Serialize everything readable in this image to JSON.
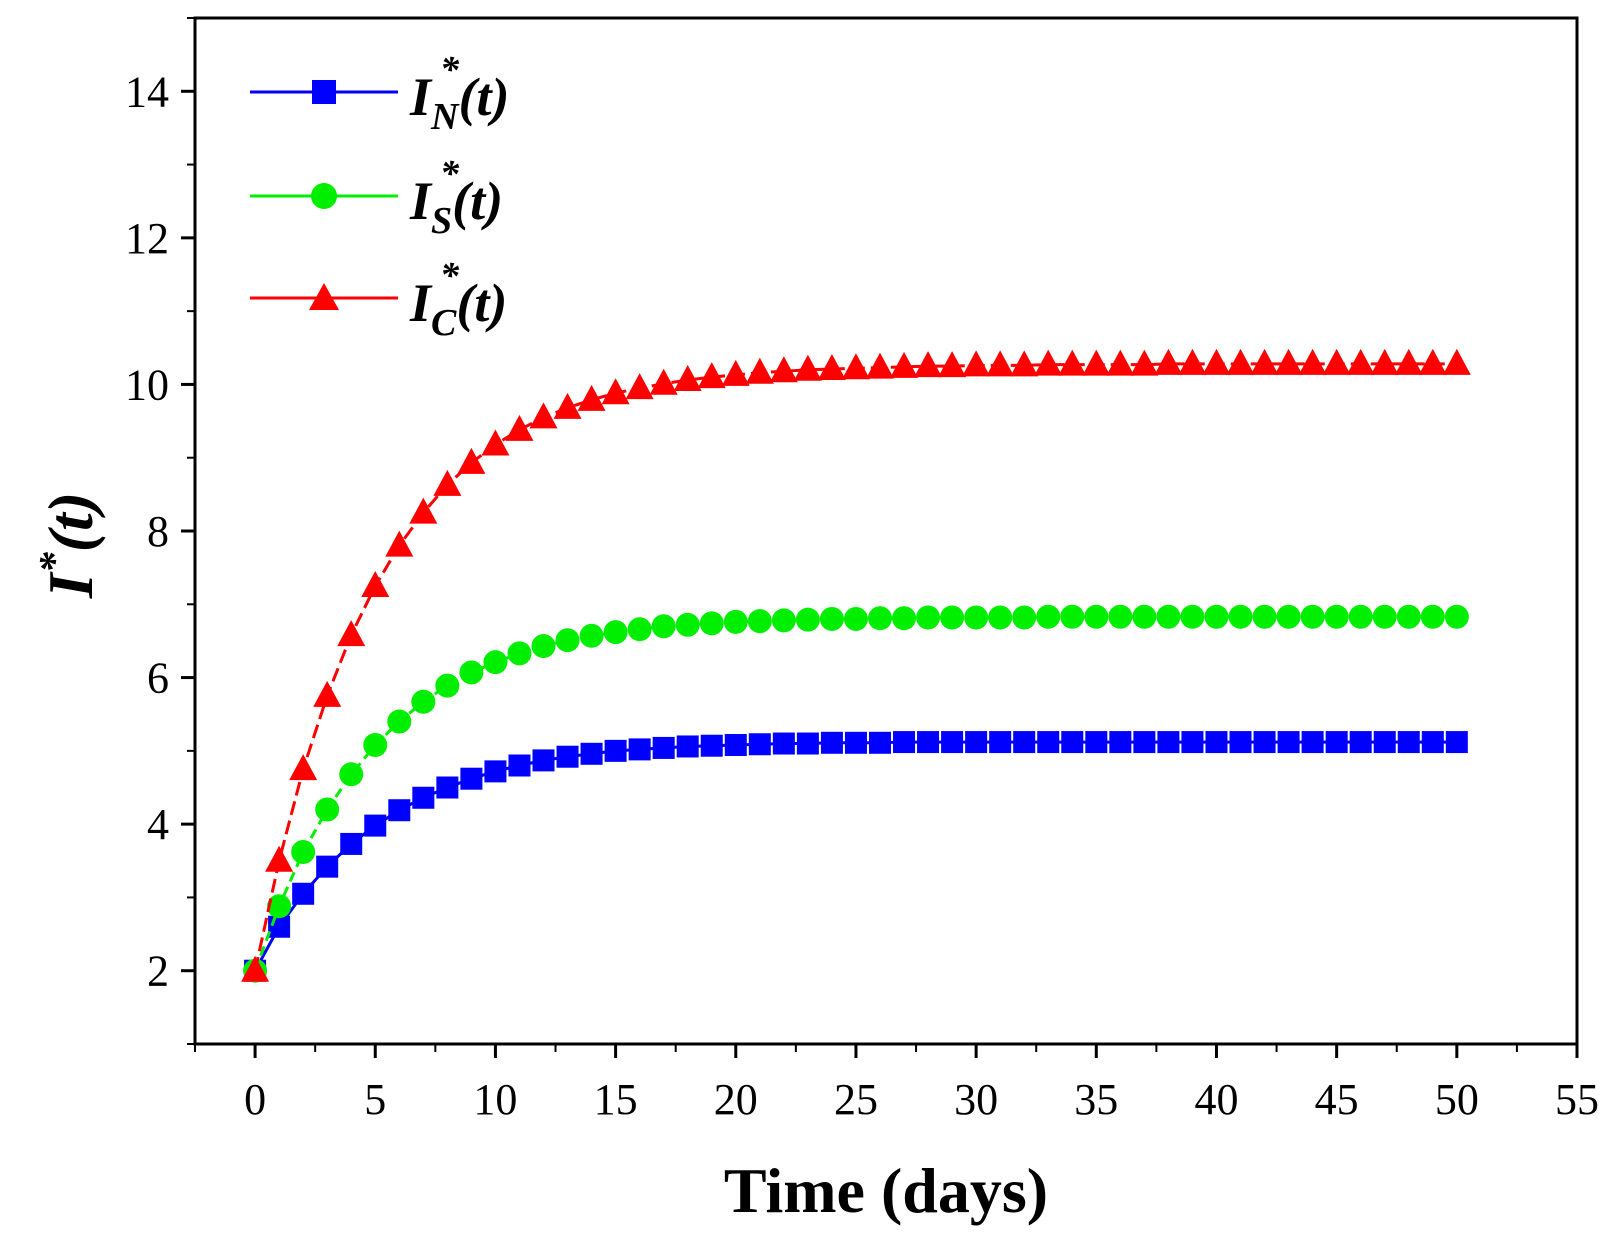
{
  "chart_data": {
    "type": "line",
    "title": "",
    "xlabel": "Time (days)",
    "ylabel": {
      "base": "I",
      "sup": "*",
      "arg": "(t)"
    },
    "xlim": [
      -2.5,
      55
    ],
    "ylim": [
      1,
      15
    ],
    "xticks": [
      0,
      5,
      10,
      15,
      20,
      25,
      30,
      35,
      40,
      45,
      50,
      55
    ],
    "yticks": [
      2,
      4,
      6,
      8,
      10,
      12,
      14
    ],
    "legend_position": "top-left",
    "x": [
      0,
      1,
      2,
      3,
      4,
      5,
      6,
      7,
      8,
      9,
      10,
      11,
      12,
      13,
      14,
      15,
      16,
      17,
      18,
      19,
      20,
      21,
      22,
      23,
      24,
      25,
      26,
      27,
      28,
      29,
      30,
      31,
      32,
      33,
      34,
      35,
      36,
      37,
      38,
      39,
      40,
      41,
      42,
      43,
      44,
      45,
      46,
      47,
      48,
      49,
      50
    ],
    "series": [
      {
        "name": "I_N*(t)",
        "label": {
          "base": "I",
          "sup": "*",
          "sub": "N",
          "arg": "(t)"
        },
        "color": "#0000ff",
        "marker": "square",
        "values": [
          2.0,
          2.6,
          3.05,
          3.42,
          3.73,
          3.98,
          4.19,
          4.36,
          4.5,
          4.62,
          4.72,
          4.8,
          4.87,
          4.92,
          4.96,
          5.0,
          5.02,
          5.04,
          5.06,
          5.07,
          5.08,
          5.09,
          5.1,
          5.1,
          5.11,
          5.11,
          5.11,
          5.12,
          5.12,
          5.12,
          5.12,
          5.12,
          5.12,
          5.12,
          5.12,
          5.12,
          5.12,
          5.12,
          5.12,
          5.12,
          5.12,
          5.12,
          5.12,
          5.12,
          5.12,
          5.12,
          5.12,
          5.12,
          5.12,
          5.12,
          5.12
        ]
      },
      {
        "name": "I_S*(t)",
        "label": {
          "base": "I",
          "sup": "*",
          "sub": "S",
          "arg": "(t)"
        },
        "color": "#00ee00",
        "marker": "circle",
        "values": [
          2.0,
          2.88,
          3.62,
          4.2,
          4.68,
          5.08,
          5.4,
          5.67,
          5.89,
          6.07,
          6.21,
          6.33,
          6.43,
          6.51,
          6.57,
          6.62,
          6.66,
          6.7,
          6.72,
          6.74,
          6.76,
          6.77,
          6.78,
          6.79,
          6.8,
          6.8,
          6.81,
          6.81,
          6.82,
          6.82,
          6.82,
          6.82,
          6.82,
          6.83,
          6.83,
          6.83,
          6.83,
          6.83,
          6.83,
          6.83,
          6.83,
          6.83,
          6.83,
          6.83,
          6.83,
          6.83,
          6.83,
          6.83,
          6.83,
          6.83,
          6.83
        ]
      },
      {
        "name": "I_C*(t)",
        "label": {
          "base": "I",
          "sup": "*",
          "sub": "C",
          "arg": "(t)"
        },
        "color": "#ff0000",
        "marker": "triangle",
        "values": [
          2.0,
          3.5,
          4.75,
          5.75,
          6.58,
          7.25,
          7.8,
          8.25,
          8.63,
          8.93,
          9.18,
          9.38,
          9.55,
          9.68,
          9.79,
          9.88,
          9.95,
          10.01,
          10.06,
          10.1,
          10.13,
          10.16,
          10.18,
          10.2,
          10.21,
          10.22,
          10.23,
          10.24,
          10.25,
          10.25,
          10.26,
          10.26,
          10.26,
          10.27,
          10.27,
          10.27,
          10.27,
          10.27,
          10.28,
          10.28,
          10.28,
          10.28,
          10.28,
          10.28,
          10.28,
          10.28,
          10.28,
          10.28,
          10.28,
          10.28,
          10.28
        ]
      }
    ]
  }
}
